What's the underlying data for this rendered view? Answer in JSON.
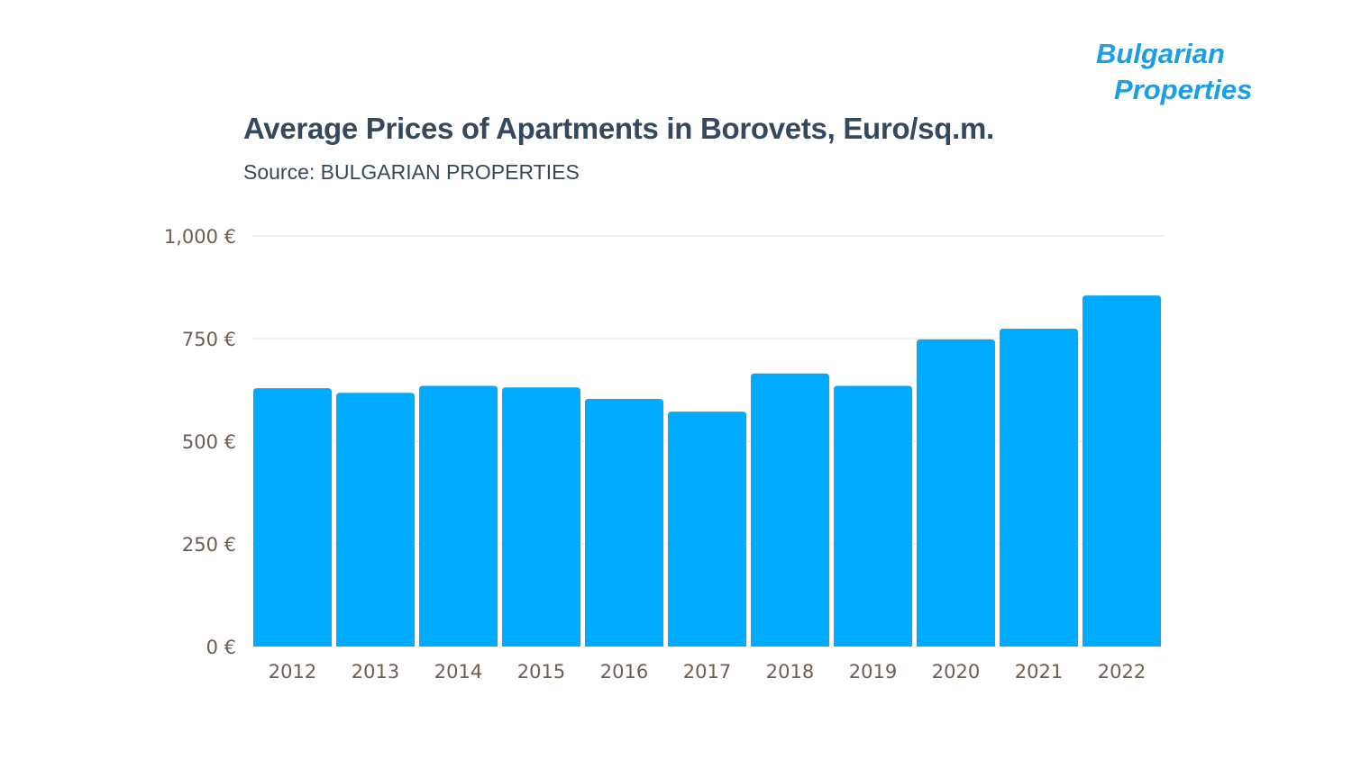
{
  "logo": {
    "line1": "Bulgarian",
    "line2": "Properties"
  },
  "chart_data": {
    "type": "bar",
    "title": "Average Prices of Apartments in Borovets, Euro/sq.m.",
    "subtitle": "Source: BULGARIAN PROPERTIES",
    "categories": [
      "2012",
      "2013",
      "2014",
      "2015",
      "2016",
      "2017",
      "2018",
      "2019",
      "2020",
      "2021",
      "2022"
    ],
    "values": [
      629,
      618,
      635,
      631,
      603,
      572,
      665,
      635,
      748,
      774,
      855
    ],
    "ylim": [
      0,
      1000
    ],
    "yticks": [
      0,
      250,
      500,
      750,
      1000
    ],
    "ytick_labels": [
      "0 €",
      "250 €",
      "500 €",
      "750 €",
      "1,000 €"
    ],
    "grid": true,
    "bar_color": "#00aaff"
  }
}
